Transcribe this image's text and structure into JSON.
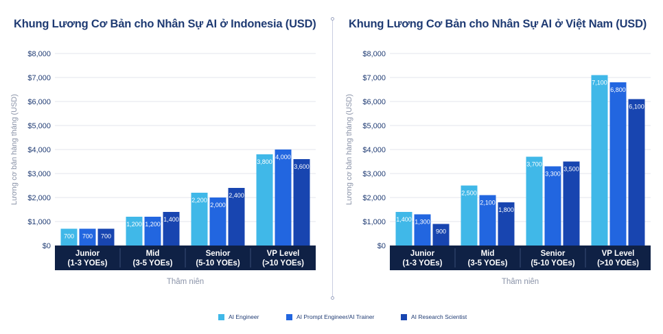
{
  "colors": {
    "series": [
      "#40b8e8",
      "#2266e0",
      "#1845b0"
    ],
    "axis_box": "#0f2145",
    "grid": "#e3e6ee",
    "text": "#1f3b73",
    "muted": "#8a93a8"
  },
  "legend": [
    {
      "label": "AI Engineer"
    },
    {
      "label": "AI Prompt Engineer/AI Trainer"
    },
    {
      "label": "AI Research Scientist"
    }
  ],
  "chart_data": [
    {
      "type": "bar",
      "title": "Khung Lương Cơ Bản cho Nhân Sự AI ở Indonesia (USD)",
      "ylabel": "Lương cơ bản hàng tháng (USD)",
      "xlabel": "Thâm niên",
      "ylim": [
        0,
        8000
      ],
      "yticks": [
        "$0",
        "$1,000",
        "$2,000",
        "$3,000",
        "$4,000",
        "$5,000",
        "$6,000",
        "$7,000",
        "$8,000"
      ],
      "categories": [
        [
          "Junior",
          "(1-3 YOEs)"
        ],
        [
          "Mid",
          "(3-5 YOEs)"
        ],
        [
          "Senior",
          "(5-10 YOEs)"
        ],
        [
          "VP Level",
          "(>10 YOEs)"
        ]
      ],
      "series": [
        {
          "name": "AI Engineer",
          "values": [
            700,
            1200,
            2200,
            3800
          ],
          "labels": [
            "700",
            "1,200",
            "2,200",
            "3,800"
          ]
        },
        {
          "name": "AI Prompt Engineer/AI Trainer",
          "values": [
            700,
            1200,
            2000,
            4000
          ],
          "labels": [
            "700",
            "1,200",
            "2,000",
            "4,000"
          ]
        },
        {
          "name": "AI Research Scientist",
          "values": [
            700,
            1400,
            2400,
            3600
          ],
          "labels": [
            "700",
            "1,400",
            "2,400",
            "3,600"
          ]
        }
      ],
      "grid": true,
      "legend_position": "bottom"
    },
    {
      "type": "bar",
      "title": "Khung Lương Cơ Bản cho Nhân Sự AI ở Việt Nam (USD)",
      "ylabel": "Lương cơ bản hàng tháng (USD)",
      "xlabel": "Thâm niên",
      "ylim": [
        0,
        8000
      ],
      "yticks": [
        "$0",
        "$1,000",
        "$2,000",
        "$3,000",
        "$4,000",
        "$5,000",
        "$6,000",
        "$7,000",
        "$8,000"
      ],
      "categories": [
        [
          "Junior",
          "(1-3 YOEs)"
        ],
        [
          "Mid",
          "(3-5 YOEs)"
        ],
        [
          "Senior",
          "(5-10 YOEs)"
        ],
        [
          "VP Level",
          "(>10 YOEs)"
        ]
      ],
      "series": [
        {
          "name": "AI Engineer",
          "values": [
            1400,
            2500,
            3700,
            7100
          ],
          "labels": [
            "1,400",
            "2,500",
            "3,700",
            "7,100"
          ]
        },
        {
          "name": "AI Prompt Engineer/AI Trainer",
          "values": [
            1300,
            2100,
            3300,
            6800
          ],
          "labels": [
            "1,300",
            "2,100",
            "3,300",
            "6,800"
          ]
        },
        {
          "name": "AI Research Scientist",
          "values": [
            900,
            1800,
            3500,
            6100
          ],
          "labels": [
            "900",
            "1,800",
            "3,500",
            "6,100"
          ]
        }
      ],
      "grid": true,
      "legend_position": "bottom"
    }
  ]
}
